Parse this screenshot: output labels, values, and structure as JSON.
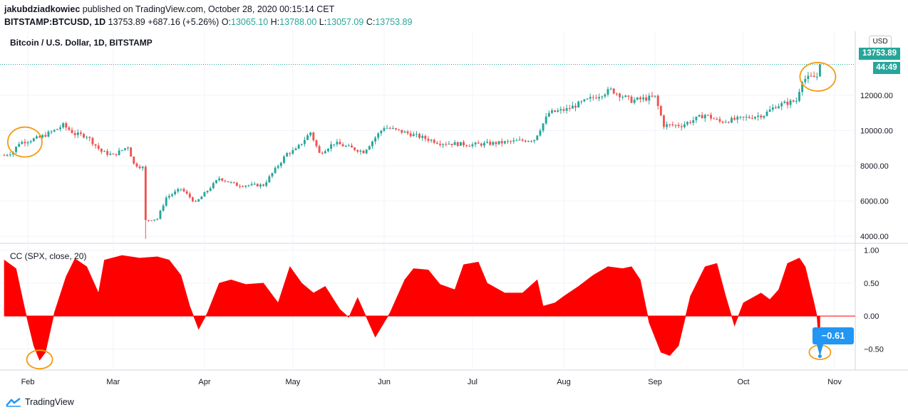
{
  "header": {
    "author": "jakubdziadkowiec",
    "published": "published on TradingView.com, October 28, 2020 00:15:14 CET",
    "symbol": "BITSTAMP:BTCUSD, 1D",
    "price": "13753.89",
    "change": "+687.16 (+5.26%)",
    "o_label": "O:",
    "o": "13065.10",
    "h_label": "H:",
    "h": "13788.00",
    "l_label": "L:",
    "l": "13057.09",
    "c_label": "C:",
    "c": "13753.89"
  },
  "pane_title": "Bitcoin / U.S. Dollar, 1D, BITSTAMP",
  "indicator_title": "CC (SPX, close, 20)",
  "currency_button": "USD",
  "last_price_label": "13753.89",
  "countdown_label": "44:49",
  "cc_value_label": "−0.61",
  "footer_brand": "TradingView",
  "colors": {
    "up": "#26a69a",
    "down": "#ef5350",
    "cc_fill": "#ff0000",
    "highlight": "#f39c12",
    "label_blue": "#2196f3"
  },
  "chart_data": [
    {
      "type": "candlestick",
      "title": "Bitcoin / U.S. Dollar, 1D, BITSTAMP",
      "ylim": [
        3600,
        14500
      ],
      "yticks": [
        "4000.00",
        "6000.00",
        "8000.00",
        "10000.00",
        "12000.00"
      ],
      "ytick_values": [
        4000,
        6000,
        8000,
        10000,
        12000
      ],
      "x_labels": [
        "Feb",
        "Mar",
        "Apr",
        "May",
        "Jun",
        "Jul",
        "Aug",
        "Sep",
        "Oct",
        "Nov"
      ],
      "x_range": [
        "2020-01-24",
        "2020-11-08"
      ],
      "close_anchors": [
        [
          "2020-01-24",
          8600
        ],
        [
          "2020-01-27",
          8800
        ],
        [
          "2020-01-29",
          9300
        ],
        [
          "2020-02-05",
          9600
        ],
        [
          "2020-02-10",
          10000
        ],
        [
          "2020-02-13",
          10300
        ],
        [
          "2020-02-17",
          9800
        ],
        [
          "2020-02-21",
          9700
        ],
        [
          "2020-02-26",
          8800
        ],
        [
          "2020-03-01",
          8600
        ],
        [
          "2020-03-06",
          9100
        ],
        [
          "2020-03-08",
          8100
        ],
        [
          "2020-03-11",
          7900
        ],
        [
          "2020-03-12",
          4900
        ],
        [
          "2020-03-16",
          5000
        ],
        [
          "2020-03-19",
          6200
        ],
        [
          "2020-03-24",
          6700
        ],
        [
          "2020-03-29",
          5900
        ],
        [
          "2020-04-06",
          7300
        ],
        [
          "2020-04-12",
          6900
        ],
        [
          "2020-04-21",
          6900
        ],
        [
          "2020-04-29",
          8700
        ],
        [
          "2020-05-02",
          8900
        ],
        [
          "2020-05-07",
          9900
        ],
        [
          "2020-05-10",
          8700
        ],
        [
          "2020-05-15",
          9300
        ],
        [
          "2020-05-25",
          8800
        ],
        [
          "2020-06-01",
          10200
        ],
        [
          "2020-06-10",
          9800
        ],
        [
          "2020-06-20",
          9300
        ],
        [
          "2020-07-01",
          9200
        ],
        [
          "2020-07-10",
          9300
        ],
        [
          "2020-07-22",
          9500
        ],
        [
          "2020-07-27",
          11000
        ],
        [
          "2020-08-02",
          11200
        ],
        [
          "2020-08-10",
          11800
        ],
        [
          "2020-08-17",
          12300
        ],
        [
          "2020-08-24",
          11700
        ],
        [
          "2020-09-01",
          11900
        ],
        [
          "2020-09-04",
          10300
        ],
        [
          "2020-09-10",
          10300
        ],
        [
          "2020-09-18",
          10900
        ],
        [
          "2020-09-23",
          10500
        ],
        [
          "2020-10-01",
          10700
        ],
        [
          "2020-10-08",
          10900
        ],
        [
          "2020-10-12",
          11400
        ],
        [
          "2020-10-19",
          11700
        ],
        [
          "2020-10-21",
          12900
        ],
        [
          "2020-10-26",
          13065
        ],
        [
          "2020-10-27",
          13753.89
        ]
      ],
      "last": {
        "open": 13065.1,
        "high": 13788.0,
        "low": 13057.09,
        "close": 13753.89
      }
    },
    {
      "type": "area",
      "title": "CC (SPX, close, 20)",
      "ylim": [
        -0.82,
        1.06
      ],
      "yticks": [
        "1.00",
        "0.50",
        "0.00",
        "−0.50"
      ],
      "ytick_values": [
        1.0,
        0.5,
        0.0,
        -0.5
      ],
      "points": [
        [
          "2020-01-24",
          0.85
        ],
        [
          "2020-01-28",
          0.72
        ],
        [
          "2020-01-31",
          0.1
        ],
        [
          "2020-02-03",
          -0.45
        ],
        [
          "2020-02-05",
          -0.67
        ],
        [
          "2020-02-07",
          -0.55
        ],
        [
          "2020-02-10",
          0.05
        ],
        [
          "2020-02-14",
          0.6
        ],
        [
          "2020-02-17",
          0.87
        ],
        [
          "2020-02-21",
          0.75
        ],
        [
          "2020-02-25",
          0.35
        ],
        [
          "2020-02-27",
          0.85
        ],
        [
          "2020-03-04",
          0.92
        ],
        [
          "2020-03-10",
          0.88
        ],
        [
          "2020-03-16",
          0.9
        ],
        [
          "2020-03-20",
          0.85
        ],
        [
          "2020-03-24",
          0.62
        ],
        [
          "2020-03-27",
          0.15
        ],
        [
          "2020-03-30",
          -0.2
        ],
        [
          "2020-04-02",
          0.05
        ],
        [
          "2020-04-06",
          0.5
        ],
        [
          "2020-04-10",
          0.55
        ],
        [
          "2020-04-15",
          0.48
        ],
        [
          "2020-04-21",
          0.5
        ],
        [
          "2020-04-26",
          0.2
        ],
        [
          "2020-04-30",
          0.75
        ],
        [
          "2020-05-04",
          0.5
        ],
        [
          "2020-05-08",
          0.35
        ],
        [
          "2020-05-12",
          0.45
        ],
        [
          "2020-05-17",
          0.1
        ],
        [
          "2020-05-20",
          -0.02
        ],
        [
          "2020-05-23",
          0.28
        ],
        [
          "2020-05-29",
          -0.32
        ],
        [
          "2020-06-03",
          0.05
        ],
        [
          "2020-06-08",
          0.55
        ],
        [
          "2020-06-11",
          0.72
        ],
        [
          "2020-06-16",
          0.7
        ],
        [
          "2020-06-20",
          0.48
        ],
        [
          "2020-06-25",
          0.4
        ],
        [
          "2020-06-28",
          0.78
        ],
        [
          "2020-07-03",
          0.82
        ],
        [
          "2020-07-06",
          0.5
        ],
        [
          "2020-07-12",
          0.35
        ],
        [
          "2020-07-18",
          0.35
        ],
        [
          "2020-07-23",
          0.55
        ],
        [
          "2020-07-25",
          0.15
        ],
        [
          "2020-07-29",
          0.2
        ],
        [
          "2020-08-01",
          0.3
        ],
        [
          "2020-08-06",
          0.45
        ],
        [
          "2020-08-11",
          0.62
        ],
        [
          "2020-08-16",
          0.75
        ],
        [
          "2020-08-21",
          0.72
        ],
        [
          "2020-08-24",
          0.75
        ],
        [
          "2020-08-27",
          0.55
        ],
        [
          "2020-08-30",
          -0.1
        ],
        [
          "2020-09-03",
          -0.55
        ],
        [
          "2020-09-06",
          -0.6
        ],
        [
          "2020-09-09",
          -0.45
        ],
        [
          "2020-09-13",
          0.3
        ],
        [
          "2020-09-18",
          0.75
        ],
        [
          "2020-09-22",
          0.8
        ],
        [
          "2020-09-25",
          0.3
        ],
        [
          "2020-09-28",
          -0.15
        ],
        [
          "2020-10-01",
          0.2
        ],
        [
          "2020-10-07",
          0.35
        ],
        [
          "2020-10-10",
          0.25
        ],
        [
          "2020-10-13",
          0.4
        ],
        [
          "2020-10-16",
          0.8
        ],
        [
          "2020-10-20",
          0.88
        ],
        [
          "2020-10-22",
          0.75
        ],
        [
          "2020-10-25",
          0.2
        ],
        [
          "2020-10-26",
          0.0
        ],
        [
          "2020-10-27",
          -0.61
        ]
      ],
      "last": -0.61
    }
  ]
}
